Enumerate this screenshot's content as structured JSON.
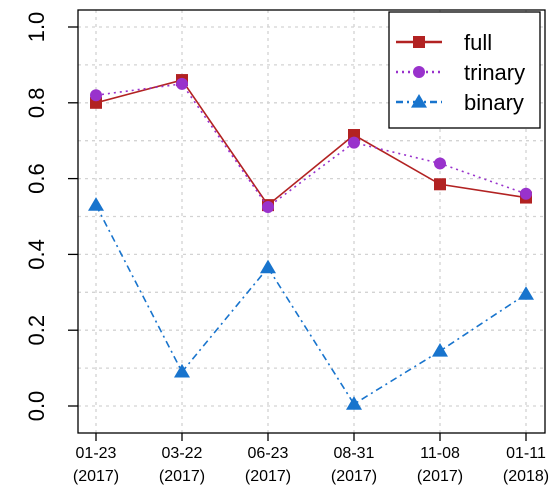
{
  "chart_data": {
    "type": "line",
    "title": "",
    "xlabel": "",
    "ylabel": "",
    "categories": [
      [
        "01-23",
        "(2017)"
      ],
      [
        "03-22",
        "(2017)"
      ],
      [
        "06-23",
        "(2017)"
      ],
      [
        "08-31",
        "(2017)"
      ],
      [
        "11-08",
        "(2017)"
      ],
      [
        "01-11",
        "(2018)"
      ]
    ],
    "ylim": [
      0.0,
      1.0
    ],
    "yticks": [
      "0.0",
      "0.2",
      "0.4",
      "0.6",
      "0.8",
      "1.0"
    ],
    "grid": true,
    "legend_position": "top-right",
    "series": [
      {
        "name": "full",
        "values": [
          0.8,
          0.86,
          0.53,
          0.715,
          0.585,
          0.55
        ],
        "color": "#b22222",
        "marker": "square",
        "dash": "solid"
      },
      {
        "name": "trinary",
        "values": [
          0.82,
          0.85,
          0.525,
          0.695,
          0.64,
          0.56
        ],
        "color": "#9932cc",
        "marker": "circle",
        "dash": "dotted"
      },
      {
        "name": "binary",
        "values": [
          0.53,
          0.09,
          0.365,
          0.005,
          0.145,
          0.295
        ],
        "color": "#1874cd",
        "marker": "triangle",
        "dash": "dashdot"
      }
    ]
  }
}
